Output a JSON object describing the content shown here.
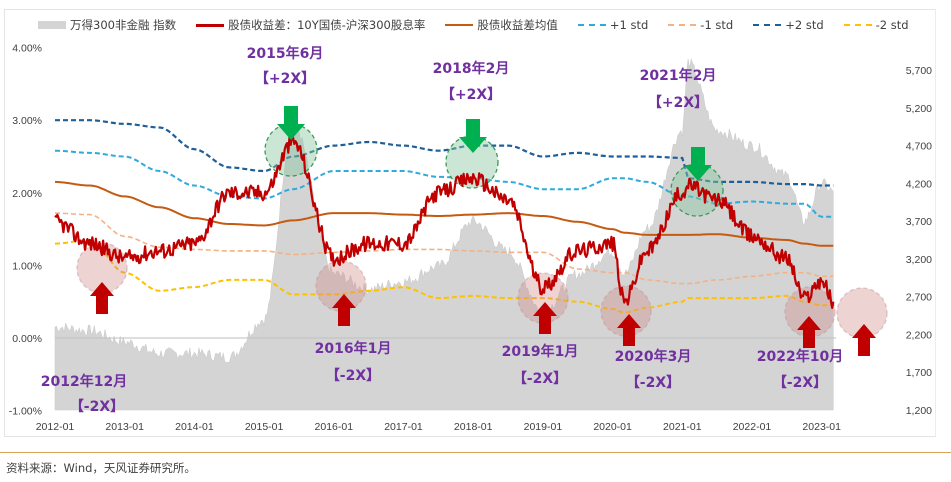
{
  "legend": {
    "items": [
      {
        "label": "万得300非金融 指数",
        "type": "area",
        "color": "#d4d4d4"
      },
      {
        "label": "股债收益差：10Y国债-沪深300股息率",
        "type": "line",
        "color": "#c00000"
      },
      {
        "label": "股债收益差均值",
        "type": "line",
        "color": "#c55a11"
      },
      {
        "label": "+1 std",
        "type": "dashed",
        "color": "#2eaadc"
      },
      {
        "label": "-1 std",
        "type": "dashed",
        "color": "#f4b183"
      },
      {
        "label": "+2 std",
        "type": "dashed",
        "color": "#1f5f99"
      },
      {
        "label": "-2 std",
        "type": "dashed",
        "color": "#ffc000"
      }
    ]
  },
  "source": "资料来源：Wind，天风证券研究所。",
  "colors": {
    "spread": "#c00000",
    "mean": "#c55a11",
    "plus1": "#2eaadc",
    "minus1": "#f4b183",
    "plus2": "#1f5f99",
    "minus2": "#ffc000",
    "index_area": "#d4d4d4",
    "annotation_text": "#7030a0",
    "buy_arrow": "#c00000",
    "sell_arrow": "#00b050"
  },
  "chart_data": {
    "type": "line",
    "title": "",
    "xlabel": "",
    "ylabel": "",
    "y2label": "",
    "x_ticks": [
      "2012-01",
      "2013-01",
      "2014-01",
      "2015-01",
      "2016-01",
      "2017-01",
      "2018-01",
      "2019-01",
      "2020-01",
      "2021-01",
      "2022-01",
      "2023-01"
    ],
    "y_left_ticks": [
      "4.00%",
      "3.00%",
      "2.00%",
      "1.00%",
      "0.00%",
      "-1.00%"
    ],
    "y_left_range": [
      -1.0,
      4.0
    ],
    "y_right_ticks": [
      "5,700",
      "5,200",
      "4,700",
      "4,200",
      "3,700",
      "3,200",
      "2,700",
      "2,200",
      "1,700",
      "1,200"
    ],
    "y_right_range": [
      1200,
      5700
    ],
    "legend_position": "top",
    "grid": false,
    "x": [
      "2012-01",
      "2012-07",
      "2013-01",
      "2013-07",
      "2014-01",
      "2014-07",
      "2015-01",
      "2015-06",
      "2016-01",
      "2016-07",
      "2017-01",
      "2017-07",
      "2018-01",
      "2018-07",
      "2019-01",
      "2019-07",
      "2020-01",
      "2020-03",
      "2020-07",
      "2021-01",
      "2021-02",
      "2021-07",
      "2022-01",
      "2022-07",
      "2022-10",
      "2023-01",
      "2023-03"
    ],
    "series": [
      {
        "name": "股债收益差：10Y国债-沪深300股息率",
        "axis": "left",
        "unit": "%",
        "values": [
          1.6,
          1.3,
          1.1,
          1.2,
          1.3,
          2.0,
          2.0,
          2.7,
          1.1,
          1.3,
          1.3,
          2.0,
          2.2,
          1.9,
          0.7,
          1.2,
          1.3,
          0.5,
          1.2,
          2.0,
          2.1,
          1.9,
          1.4,
          1.1,
          0.55,
          0.8,
          0.5
        ]
      },
      {
        "name": "股债收益差均值",
        "axis": "left",
        "unit": "%",
        "values": [
          2.15,
          2.1,
          1.95,
          1.8,
          1.65,
          1.57,
          1.55,
          1.62,
          1.72,
          1.72,
          1.7,
          1.68,
          1.7,
          1.72,
          1.68,
          1.6,
          1.5,
          1.45,
          1.42,
          1.42,
          1.42,
          1.43,
          1.38,
          1.35,
          1.3,
          1.27,
          1.27
        ]
      },
      {
        "name": "+1 std",
        "axis": "left",
        "unit": "%",
        "values": [
          2.58,
          2.55,
          2.5,
          2.3,
          2.1,
          1.95,
          1.92,
          2.05,
          2.3,
          2.3,
          2.3,
          2.22,
          2.2,
          2.15,
          2.05,
          2.05,
          2.2,
          2.2,
          2.15,
          1.95,
          1.95,
          1.85,
          1.88,
          1.85,
          1.85,
          1.67,
          1.67
        ]
      },
      {
        "name": "-1 std",
        "axis": "left",
        "unit": "%",
        "values": [
          1.72,
          1.7,
          1.4,
          1.25,
          1.22,
          1.2,
          1.2,
          1.15,
          1.18,
          1.2,
          1.22,
          1.22,
          1.2,
          1.18,
          1.18,
          0.95,
          0.9,
          0.9,
          0.8,
          0.75,
          0.75,
          0.8,
          0.85,
          0.9,
          0.9,
          0.85,
          0.85
        ]
      },
      {
        "name": "+2 std",
        "axis": "left",
        "unit": "%",
        "values": [
          3.0,
          3.0,
          2.95,
          2.9,
          2.6,
          2.35,
          2.3,
          2.5,
          2.65,
          2.7,
          2.65,
          2.58,
          2.65,
          2.65,
          2.5,
          2.55,
          2.5,
          2.5,
          2.5,
          2.48,
          2.2,
          2.15,
          2.15,
          2.12,
          2.12,
          2.1,
          2.1
        ]
      },
      {
        "name": "-2 std",
        "axis": "left",
        "unit": "%",
        "values": [
          1.3,
          1.35,
          0.9,
          0.65,
          0.7,
          0.8,
          0.8,
          0.6,
          0.6,
          0.65,
          0.7,
          0.55,
          0.58,
          0.55,
          0.55,
          0.5,
          0.4,
          0.35,
          0.42,
          0.5,
          0.55,
          0.55,
          0.55,
          0.58,
          0.5,
          0.45,
          0.45
        ]
      },
      {
        "name": "万得300非金融 指数",
        "axis": "right",
        "unit": "pts",
        "values": [
          2300,
          2250,
          2100,
          1950,
          1950,
          1900,
          2400,
          5000,
          3000,
          2800,
          2900,
          3100,
          3700,
          3300,
          2500,
          3000,
          3300,
          3000,
          3600,
          4900,
          5800,
          4900,
          4700,
          4300,
          3700,
          4200,
          4100
        ]
      }
    ],
    "annotations": [
      {
        "label": "2012年12月",
        "tag": "【-2X】",
        "signal": "buy",
        "date": "2012-12"
      },
      {
        "label": "2015年6月",
        "tag": "【+2X】",
        "signal": "sell",
        "date": "2015-06"
      },
      {
        "label": "2016年1月",
        "tag": "【-2X】",
        "signal": "buy",
        "date": "2016-01"
      },
      {
        "label": "2018年2月",
        "tag": "【+2X】",
        "signal": "sell",
        "date": "2018-02"
      },
      {
        "label": "2019年1月",
        "tag": "【-2X】",
        "signal": "buy",
        "date": "2019-01"
      },
      {
        "label": "2020年3月",
        "tag": "【-2X】",
        "signal": "buy",
        "date": "2020-03"
      },
      {
        "label": "2021年2月",
        "tag": "【+2X】",
        "signal": "sell",
        "date": "2021-02"
      },
      {
        "label": "2022年10月",
        "tag": "【-2X】",
        "signal": "buy",
        "date": "2022-10"
      },
      {
        "label": "",
        "tag": "",
        "signal": "buy",
        "date": "2023-03"
      }
    ]
  }
}
